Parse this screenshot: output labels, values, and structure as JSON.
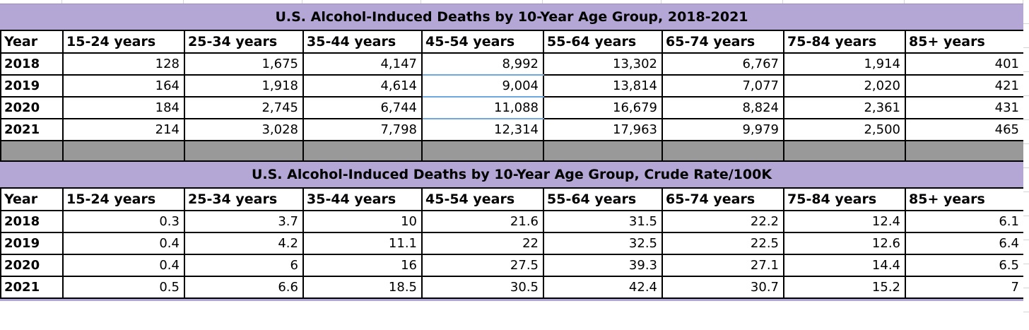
{
  "table1": {
    "title": "U.S. Alcohol-Induced Deaths by 10-Year Age Group, 2018-2021",
    "columns": [
      "Year",
      "15-24 years",
      "25-34 years",
      "35-44 years",
      "45-54 years",
      "55-64 years",
      "65-74 years",
      "75-84 years",
      "85+ years"
    ],
    "rows": [
      {
        "year": "2018",
        "values": [
          "128",
          "1,675",
          "4,147",
          "8,992",
          "13,302",
          "6,767",
          "1,914",
          "401"
        ]
      },
      {
        "year": "2019",
        "values": [
          "164",
          "1,918",
          "4,614",
          "9,004",
          "13,814",
          "7,077",
          "2,020",
          "421"
        ]
      },
      {
        "year": "2020",
        "values": [
          "184",
          "2,745",
          "6,744",
          "11,088",
          "16,679",
          "8,824",
          "2,361",
          "431"
        ]
      },
      {
        "year": "2021",
        "values": [
          "214",
          "3,028",
          "7,798",
          "12,314",
          "17,963",
          "9,979",
          "2,500",
          "465"
        ]
      }
    ]
  },
  "table2": {
    "title": "U.S. Alcohol-Induced Deaths by 10-Year Age Group, Crude Rate/100K",
    "columns": [
      "Year",
      "15-24 years",
      "25-34 years",
      "35-44 years",
      "45-54 years",
      "55-64 years",
      "65-74 years",
      "75-84 years",
      "85+ years"
    ],
    "rows": [
      {
        "year": "2018",
        "values": [
          "0.3",
          "3.7",
          "10",
          "21.6",
          "31.5",
          "22.2",
          "12.4",
          "6.1"
        ]
      },
      {
        "year": "2019",
        "values": [
          "0.4",
          "4.2",
          "11.1",
          "22",
          "32.5",
          "22.5",
          "12.6",
          "6.4"
        ]
      },
      {
        "year": "2020",
        "values": [
          "0.4",
          "6",
          "16",
          "27.5",
          "39.3",
          "27.1",
          "14.4",
          "6.5"
        ]
      },
      {
        "year": "2021",
        "values": [
          "0.5",
          "6.6",
          "18.5",
          "30.5",
          "42.4",
          "30.7",
          "15.2",
          "7"
        ]
      }
    ]
  },
  "colors": {
    "title_bg": "#b4a7d6",
    "spacer_bg": "#999999",
    "accent_blue_border": "#6fa8dc",
    "grid_border": "#000000"
  }
}
